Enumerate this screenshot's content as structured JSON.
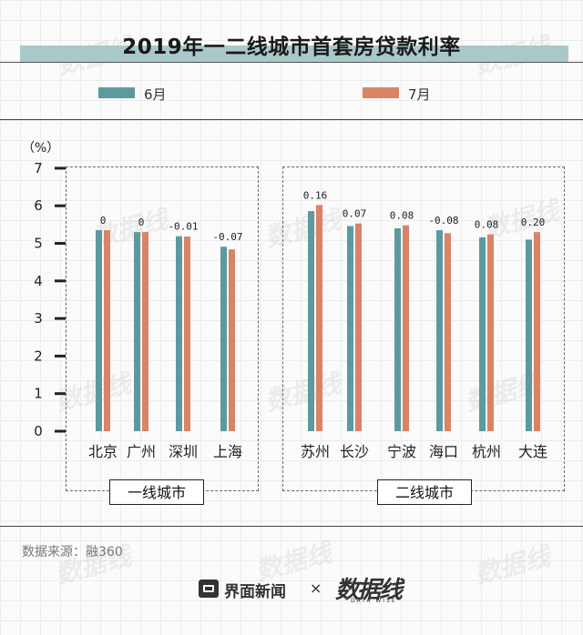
{
  "colors": {
    "june": "#5c9aa0",
    "july": "#d98367",
    "title_band": "#a9c8ca"
  },
  "title": "2019年一二线城市首套房贷款利率",
  "legend": [
    {
      "label": "6月",
      "color": "#5c9aa0"
    },
    {
      "label": "7月",
      "color": "#d98367"
    }
  ],
  "source": "数据来源：融360",
  "footer": {
    "brand1": "界面新闻",
    "times": "×",
    "brand2": "数据线",
    "brand2_sub": "DATA WISE"
  },
  "watermark": "数据线",
  "chart_data": {
    "type": "bar",
    "unit": "（%）",
    "ylim": [
      0,
      7
    ],
    "yticks": [
      "0",
      "1",
      "2",
      "3",
      "4",
      "5",
      "6",
      "7"
    ],
    "grid": false,
    "legend_position": "top",
    "groups": [
      {
        "label": "一线城市",
        "categories": [
          "北京",
          "广州",
          "深圳",
          "上海"
        ]
      },
      {
        "label": "二线城市",
        "categories": [
          "苏州",
          "长沙",
          "宁波",
          "海口",
          "杭州",
          "大连"
        ]
      }
    ],
    "categories": [
      "北京",
      "广州",
      "深圳",
      "上海",
      "苏州",
      "长沙",
      "宁波",
      "海口",
      "杭州",
      "大连"
    ],
    "series": [
      {
        "name": "6月",
        "values": [
          5.35,
          5.3,
          5.19,
          4.91,
          5.86,
          5.46,
          5.4,
          5.35,
          5.16,
          5.1
        ]
      },
      {
        "name": "7月",
        "values": [
          5.35,
          5.3,
          5.18,
          4.84,
          6.02,
          5.53,
          5.48,
          5.27,
          5.24,
          5.3
        ]
      }
    ],
    "annotations": [
      "0",
      "0",
      "-0.01",
      "-0.07",
      "0.16",
      "0.07",
      "0.08",
      "-0.08",
      "0.08",
      "0.20"
    ]
  }
}
